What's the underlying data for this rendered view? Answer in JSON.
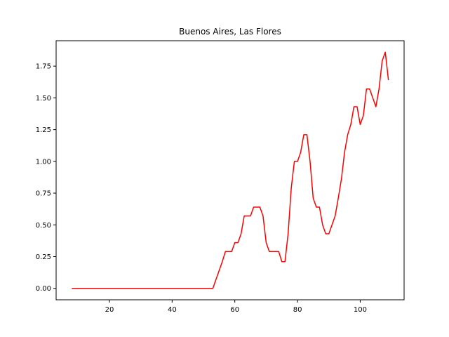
{
  "chart_data": {
    "type": "line",
    "title": "Buenos Aires, Las Flores",
    "xlabel": "",
    "ylabel": "",
    "xlim": [
      3,
      114
    ],
    "ylim": [
      -0.09,
      1.95
    ],
    "xticks": [
      20,
      40,
      60,
      80,
      100
    ],
    "yticks": [
      0.0,
      0.25,
      0.5,
      0.75,
      1.0,
      1.25,
      1.5,
      1.75
    ],
    "ytick_labels": [
      "0.00",
      "0.25",
      "0.50",
      "0.75",
      "1.00",
      "1.25",
      "1.50",
      "1.75"
    ],
    "grid": false,
    "legend": "none",
    "series": [
      {
        "color": "#ff0000",
        "x": [
          8,
          53,
          54,
          55,
          56,
          57,
          58,
          59,
          60,
          61,
          62,
          63,
          64,
          65,
          66,
          67,
          68,
          69,
          70,
          71,
          72,
          73,
          74,
          75,
          76,
          77,
          78,
          79,
          80,
          81,
          82,
          83,
          84,
          85,
          86,
          87,
          88,
          89,
          90,
          91,
          92,
          93,
          94,
          95,
          96,
          97,
          98,
          99,
          100,
          101,
          102,
          103,
          104,
          105,
          106,
          107,
          108,
          109
        ],
        "y": [
          0.0,
          0.0,
          0.07,
          0.14,
          0.21,
          0.29,
          0.29,
          0.29,
          0.36,
          0.36,
          0.43,
          0.57,
          0.57,
          0.57,
          0.64,
          0.64,
          0.64,
          0.57,
          0.36,
          0.29,
          0.29,
          0.29,
          0.29,
          0.21,
          0.21,
          0.43,
          0.79,
          1.0,
          1.0,
          1.07,
          1.21,
          1.21,
          1.0,
          0.71,
          0.64,
          0.64,
          0.5,
          0.43,
          0.43,
          0.5,
          0.57,
          0.71,
          0.86,
          1.07,
          1.21,
          1.29,
          1.43,
          1.43,
          1.29,
          1.36,
          1.57,
          1.57,
          1.5,
          1.43,
          1.57,
          1.79,
          1.86,
          1.64
        ]
      }
    ]
  }
}
